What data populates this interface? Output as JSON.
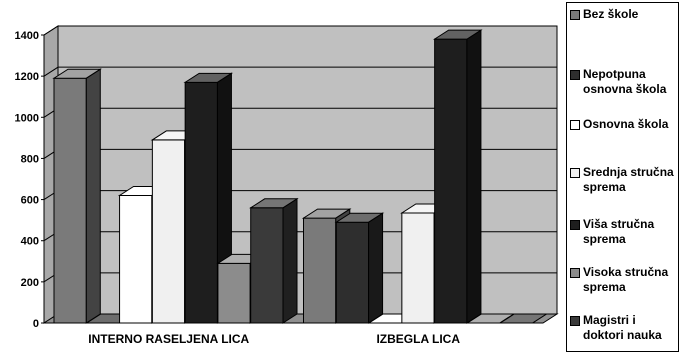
{
  "chart_data": {
    "type": "bar",
    "categories": [
      "INTERNO RASELJENA LICA",
      "IZBEGLA LICA"
    ],
    "series": [
      {
        "name": "Bez škole",
        "color": "#7a7a7a",
        "values": [
          1190,
          510
        ]
      },
      {
        "name": "Nepotpuna osnovna škola",
        "color": "#2e2e2e",
        "values": [
          0,
          490
        ]
      },
      {
        "name": "Osnovna škola",
        "color": "#ffffff",
        "values": [
          620,
          0
        ]
      },
      {
        "name": "Srednja stručna sprema",
        "color": "#f0f0f0",
        "values": [
          890,
          535
        ]
      },
      {
        "name": "Viša stručna sprema",
        "color": "#1e1e1e",
        "values": [
          1170,
          1380
        ]
      },
      {
        "name": "Visoka stručna sprema",
        "color": "#8c8c8c",
        "values": [
          290,
          0
        ]
      },
      {
        "name": "Magistri i doktori nauka",
        "color": "#3a3a3a",
        "values": [
          560,
          0
        ]
      }
    ],
    "ylim": [
      0,
      1400
    ],
    "yticks": [
      "0",
      "200",
      "400",
      "600",
      "800",
      "1000",
      "1200",
      "1400"
    ],
    "grid": true,
    "legend_position": "right",
    "plot_background": "#c0c0c0"
  }
}
